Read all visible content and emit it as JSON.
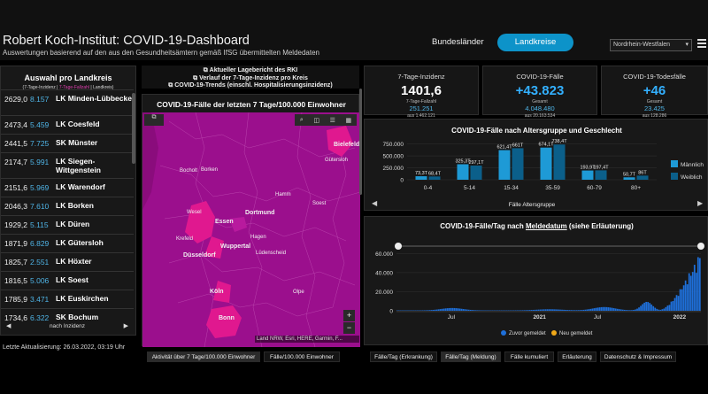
{
  "header": {
    "title": "Robert Koch-Institut: COVID-19-Dashboard",
    "subtitle": "Auswertungen basierend auf den aus den Gesundheitsämtern gemäß IfSG übermittelten Meldedaten",
    "nav_bundeslaender": "Bundesländer",
    "nav_landkreise": "Landkreise",
    "state_select": "Nordrhein-Westfalen"
  },
  "left": {
    "title": "Auswahl pro Landkreis",
    "legend_a": "(7-Tage-Inzidenz | ",
    "legend_b": "7-Tage-Fallzahl",
    "legend_c": " | Landkreis)",
    "rows": [
      {
        "inc": "2629,0",
        "cases": "8.157",
        "name": "LK Minden-Lübbecke"
      },
      {
        "inc": "2473,4",
        "cases": "5.459",
        "name": "LK Coesfeld"
      },
      {
        "inc": "2441,5",
        "cases": "7.725",
        "name": "SK Münster"
      },
      {
        "inc": "2174,7",
        "cases": "5.991",
        "name": "LK Siegen-Wittgenstein"
      },
      {
        "inc": "2151,6",
        "cases": "5.969",
        "name": "LK Warendorf"
      },
      {
        "inc": "2046,3",
        "cases": "7.610",
        "name": "LK Borken"
      },
      {
        "inc": "1929,2",
        "cases": "5.115",
        "name": "LK Düren"
      },
      {
        "inc": "1871,9",
        "cases": "6.829",
        "name": "LK Gütersloh"
      },
      {
        "inc": "1825,7",
        "cases": "2.551",
        "name": "LK Höxter"
      },
      {
        "inc": "1816,5",
        "cases": "5.006",
        "name": "LK Soest"
      },
      {
        "inc": "1785,9",
        "cases": "3.471",
        "name": "LK Euskirchen"
      },
      {
        "inc": "1734,6",
        "cases": "6.322",
        "name": "SK Bochum"
      }
    ],
    "footer": "nach Inzidenz",
    "update": "Letzte Aktualisierung: 26.03.2022, 03:19 Uhr"
  },
  "links": {
    "l1": "Aktueller Lagebericht des RKI",
    "l2": "Verlauf der 7-Tage-Inzidenz pro Kreis",
    "l3": "COVID-19-Trends (einschl. Hospitalisierungsinzidenz)"
  },
  "map": {
    "title": "COVID-19-Fälle der letzten 7 Tage/100.000 Einwohner",
    "attribution": "Land NRW, Esri, HERE, Garmin, F...",
    "cities": [
      "Bielefeld",
      "Gütersloh",
      "Bocholt",
      "Borken",
      "Hamm",
      "Soest",
      "Wesel",
      "Essen",
      "Dortmund",
      "Krefeld",
      "Hagen",
      "Wuppertal",
      "Düsseldorf",
      "Lüdenscheid",
      "Köln",
      "Bonn",
      "Olpe"
    ],
    "zoom_in": "+",
    "zoom_out": "−"
  },
  "kpis": [
    {
      "label": "7-Tage-Inzidenz",
      "value": "1401,6",
      "sub": "7-Tage-Fallzahl",
      "subval": "251.251",
      "subval2": "aus 1.462.121"
    },
    {
      "label": "COVID-19-Fälle",
      "value": "+43.823",
      "sub": "Gesamt",
      "subval": "4.048.480",
      "subval2": "aus 20.163.534"
    },
    {
      "label": "COVID-19-Todesfälle",
      "value": "+46",
      "sub": "Gesamt",
      "subval": "23.425",
      "subval2": "aus 128.286"
    }
  ],
  "chart_data": [
    {
      "type": "bar",
      "title": "COVID-19-Fälle nach Altersgruppe und Geschlecht",
      "xlabel": "Fälle Altersgruppe",
      "categories": [
        "0-4",
        "5-14",
        "15-34",
        "35-59",
        "60-79",
        "80+"
      ],
      "series": [
        {
          "name": "Männlich",
          "values": [
            73.3,
            325.3,
            621.4,
            674.1,
            193.9,
            50.7
          ],
          "labels": [
            "73,3T",
            "325,3T",
            "621,4T",
            "674,1T",
            "193,9T",
            "50,7T"
          ],
          "color": "#1e9ad6"
        },
        {
          "name": "Weiblich",
          "values": [
            68.4,
            297.1,
            661,
            738.4,
            197.4,
            86
          ],
          "labels": [
            "68,4T",
            "297,1T",
            "661T",
            "738,4T",
            "197,4T",
            "86T"
          ],
          "color": "#0b5f8a"
        }
      ],
      "yticks": [
        "0",
        "250.000",
        "500.000",
        "750.000"
      ],
      "ylim": [
        0,
        780
      ]
    },
    {
      "type": "bar",
      "title_a": "COVID-19-Fälle/Tag nach ",
      "title_b": "Meldedatum",
      "title_c": " (siehe Erläuterung)",
      "yticks": [
        "0",
        "20.000",
        "40.000",
        "60.000"
      ],
      "ylim": [
        0,
        65000
      ],
      "xticks": [
        "Jul",
        "2021",
        "Jul",
        "2022"
      ],
      "legend": [
        {
          "name": "Zuvor gemeldet",
          "color": "#1e6fd9"
        },
        {
          "name": "Neu gemeldet",
          "color": "#f0a818"
        }
      ]
    }
  ],
  "tabs": {
    "map_tab1": "Aktivität über 7 Tage/100.000 Einwohner",
    "map_tab2": "Fälle/100.000 Einwohner",
    "t1": "Fälle/Tag (Erkrankung)",
    "t2": "Fälle/Tag (Meldung)",
    "t3": "Fälle kumuliert",
    "t4": "Erläuterung",
    "t5": "Datenschutz & Impressum"
  },
  "colors": {
    "accent": "#0d93c9",
    "map": "#9b0f8d",
    "hot": "#e0188f"
  }
}
